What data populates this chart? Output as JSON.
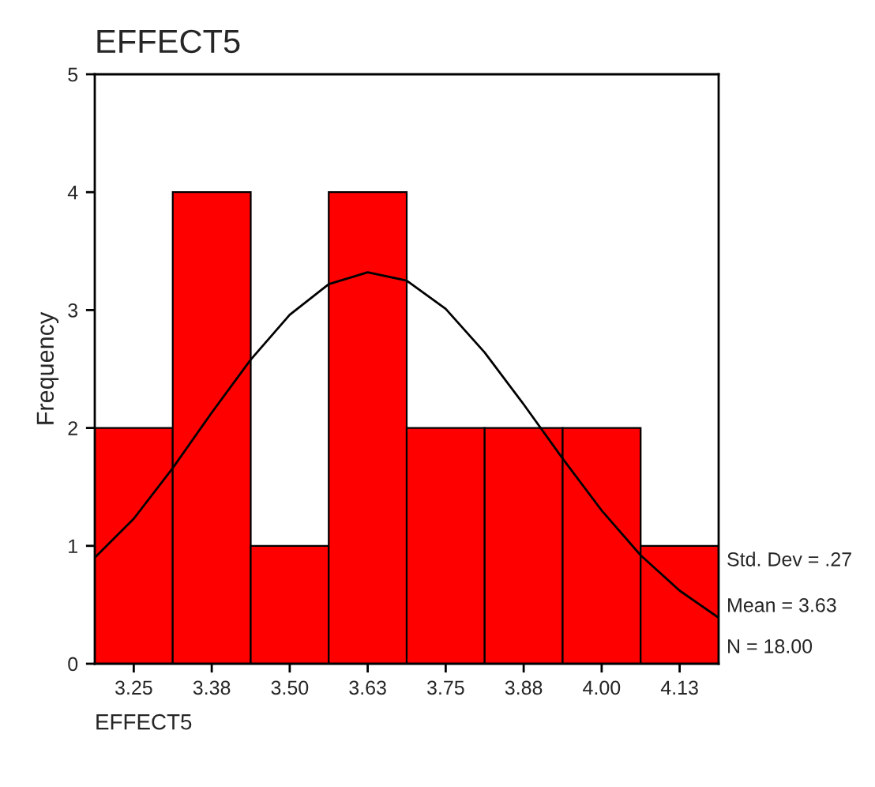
{
  "chart_data": {
    "type": "histogram",
    "title": "EFFECT5",
    "xlabel": "EFFECT5",
    "ylabel": "Frequency",
    "bins": [
      3.1875,
      3.3125,
      3.4375,
      3.5625,
      3.6875,
      3.8125,
      3.9375,
      4.0625,
      4.1875
    ],
    "values": [
      2,
      4,
      1,
      4,
      2,
      2,
      2,
      1
    ],
    "color": "#ff0000",
    "series": [
      {
        "type": "line",
        "color": "#000000",
        "x": [
          3.1875,
          3.25,
          3.3125,
          3.375,
          3.4375,
          3.5,
          3.5625,
          3.625,
          3.6875,
          3.75,
          3.8125,
          3.875,
          3.9375,
          4.0,
          4.0625,
          4.125,
          4.1875
        ],
        "values": [
          0.9,
          1.23,
          1.66,
          2.13,
          2.58,
          2.96,
          3.22,
          3.32,
          3.25,
          3.01,
          2.64,
          2.2,
          1.74,
          1.3,
          0.92,
          0.62,
          0.39
        ]
      }
    ],
    "xlim": [
      3.1875,
      4.1875
    ],
    "ylim": [
      0,
      5
    ],
    "xticks": [
      3.25,
      {
        "value": 3.375,
        "label": "3.38"
      },
      {
        "value": 3.5,
        "label": "3.50"
      },
      {
        "value": 3.625,
        "label": "3.63"
      },
      3.75,
      {
        "value": 3.875,
        "label": "3.88"
      },
      {
        "value": 4.0,
        "label": "4.00"
      },
      {
        "value": 4.125,
        "label": "4.13"
      }
    ],
    "yticks": [
      0,
      1,
      2,
      3,
      4,
      5
    ],
    "annotations": [
      "Std. Dev = .27",
      "Mean = 3.63",
      "N = 18.00"
    ],
    "grid": false,
    "legend": false
  }
}
